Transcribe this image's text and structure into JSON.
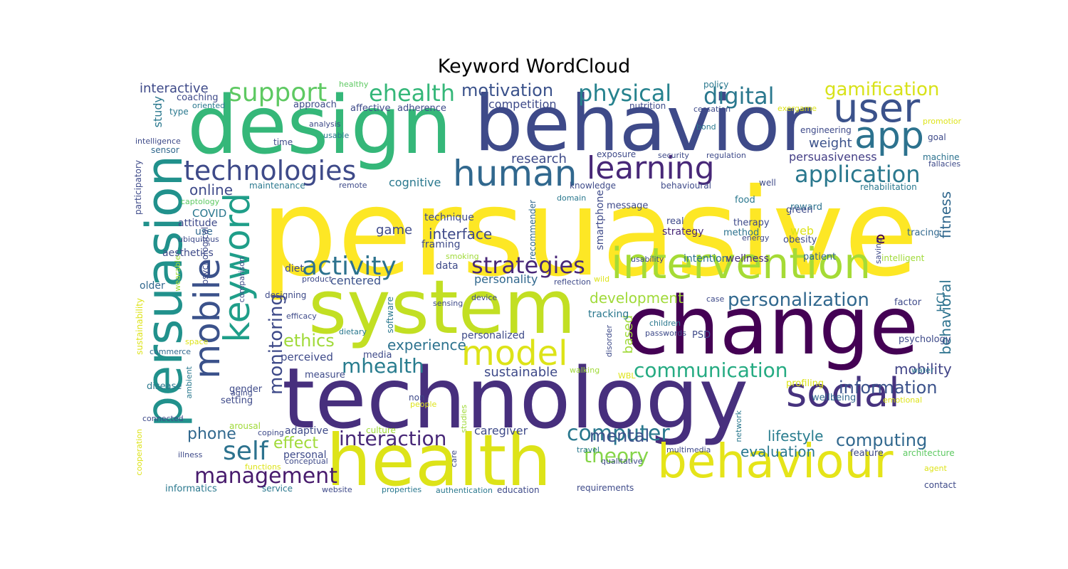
{
  "figure": {
    "title": "Keyword WordCloud",
    "words": [
      {
        "text": "persuasive",
        "color": "#fde725"
      },
      {
        "text": "design",
        "color": "#35b779"
      },
      {
        "text": "behavior",
        "color": "#3e4a89"
      },
      {
        "text": "technology",
        "color": "#472f7d"
      },
      {
        "text": "health",
        "color": "#dde318"
      },
      {
        "text": "system",
        "color": "#c2df23"
      },
      {
        "text": "change",
        "color": "#440154"
      },
      {
        "text": "persuasion",
        "color": "#21918c"
      },
      {
        "text": "behaviour",
        "color": "#e5e419"
      },
      {
        "text": "user",
        "color": "#3b528b"
      },
      {
        "text": "app",
        "color": "#2c728e"
      },
      {
        "text": "intervention",
        "color": "#a5db36"
      },
      {
        "text": "social",
        "color": "#46327e"
      },
      {
        "text": "keyword",
        "color": "#1f9e89"
      },
      {
        "text": "mobile",
        "color": "#3b528b"
      },
      {
        "text": "human",
        "color": "#31688e"
      },
      {
        "text": "learning",
        "color": "#482878"
      },
      {
        "text": "model",
        "color": "#dde318"
      },
      {
        "text": "technologies",
        "color": "#3e4a89"
      },
      {
        "text": "support",
        "color": "#5ec962"
      },
      {
        "text": "ehealth",
        "color": "#35b779"
      },
      {
        "text": "activity",
        "color": "#2c728e"
      },
      {
        "text": "strategies",
        "color": "#482878"
      },
      {
        "text": "application",
        "color": "#2a788e"
      },
      {
        "text": "physical",
        "color": "#26828e"
      },
      {
        "text": "digital",
        "color": "#2a788e"
      },
      {
        "text": "gamification",
        "color": "#d8e219"
      },
      {
        "text": "motivation",
        "color": "#3b528b"
      },
      {
        "text": "communication",
        "color": "#25ab82"
      },
      {
        "text": "computer",
        "color": "#2a788e"
      },
      {
        "text": "self",
        "color": "#2c728e"
      },
      {
        "text": "management",
        "color": "#481b6d"
      },
      {
        "text": "interaction",
        "color": "#482878"
      },
      {
        "text": "mhealth",
        "color": "#287c8e"
      },
      {
        "text": "personalization",
        "color": "#31688e"
      },
      {
        "text": "information",
        "color": "#3b528b"
      },
      {
        "text": "monitoring",
        "color": "#3e4a89"
      },
      {
        "text": "theory",
        "color": "#86d549"
      },
      {
        "text": "mental",
        "color": "#3b528b"
      },
      {
        "text": "computing",
        "color": "#31688e"
      },
      {
        "text": "fitness",
        "color": "#31688e"
      },
      {
        "text": "behavioral",
        "color": "#2c728e"
      },
      {
        "text": "development",
        "color": "#a0da39"
      },
      {
        "text": "ethics",
        "color": "#a0da39"
      },
      {
        "text": "experience",
        "color": "#2c728e"
      },
      {
        "text": "online",
        "color": "#3e4a89"
      },
      {
        "text": "phone",
        "color": "#31688e"
      },
      {
        "text": "effect",
        "color": "#a0da39"
      },
      {
        "text": "evaluation",
        "color": "#2a788e"
      },
      {
        "text": "lifestyle",
        "color": "#287c8e"
      },
      {
        "text": "mobility",
        "color": "#414487"
      },
      {
        "text": "sustainable",
        "color": "#3e4a89"
      },
      {
        "text": "interface",
        "color": "#3e4a89"
      },
      {
        "text": "research",
        "color": "#3e4a89"
      },
      {
        "text": "weight",
        "color": "#3b528b"
      },
      {
        "text": "persuasiveness",
        "color": "#433e85"
      },
      {
        "text": "game",
        "color": "#3e4a89"
      },
      {
        "text": "web",
        "color": "#dde318"
      },
      {
        "text": "e",
        "color": "#440154"
      },
      {
        "text": "interactive",
        "color": "#3e4a89"
      },
      {
        "text": "study",
        "color": "#2a788e"
      },
      {
        "text": "cognitive",
        "color": "#2a788e"
      },
      {
        "text": "competition",
        "color": "#3e4a89"
      },
      {
        "text": "personality",
        "color": "#31688e"
      },
      {
        "text": "centered",
        "color": "#3b528b"
      },
      {
        "text": "based",
        "color": "#a0da39"
      },
      {
        "text": "HCI",
        "color": "#2c728e"
      },
      {
        "text": "caregiver",
        "color": "#3e4a89"
      },
      {
        "text": "COVID",
        "color": "#2a788e"
      },
      {
        "text": "perceived",
        "color": "#3e4a89"
      },
      {
        "text": "personalized",
        "color": "#3e4a89"
      },
      {
        "text": "tracking",
        "color": "#2a788e"
      },
      {
        "text": "strategy",
        "color": "#482878"
      },
      {
        "text": "adaptive",
        "color": "#3e4a89"
      },
      {
        "text": "intention",
        "color": "#2c728e"
      },
      {
        "text": "wellness",
        "color": "#472f7d"
      },
      {
        "text": "smartphone",
        "color": "#3e4a89"
      },
      {
        "text": "framing",
        "color": "#3e4a89"
      },
      {
        "text": "technique",
        "color": "#3e4a89"
      },
      {
        "text": "data",
        "color": "#3e4a89"
      },
      {
        "text": "diet",
        "color": "#3e4a89"
      },
      {
        "text": "use",
        "color": "#31688e"
      },
      {
        "text": "attitude",
        "color": "#3e4a89"
      },
      {
        "text": "aesthetics",
        "color": "#3e4a89"
      },
      {
        "text": "older",
        "color": "#31688e"
      },
      {
        "text": "personal",
        "color": "#3e4a89"
      },
      {
        "text": "psychology",
        "color": "#3e4a89"
      },
      {
        "text": "method",
        "color": "#2c728e"
      },
      {
        "text": "therapy",
        "color": "#3e4a89"
      },
      {
        "text": "reward",
        "color": "#2c728e"
      },
      {
        "text": "green",
        "color": "#3e4a89"
      },
      {
        "text": "obesity",
        "color": "#3e4a89"
      },
      {
        "text": "patient",
        "color": "#31688e"
      },
      {
        "text": "tracing",
        "color": "#31688e"
      },
      {
        "text": "factor",
        "color": "#3e4a89"
      },
      {
        "text": "PSD",
        "color": "#3e4a89"
      },
      {
        "text": "real",
        "color": "#3e4a89"
      },
      {
        "text": "message",
        "color": "#3e4a89"
      },
      {
        "text": "food",
        "color": "#2a788e"
      },
      {
        "text": "setting",
        "color": "#3e4a89"
      },
      {
        "text": "gender",
        "color": "#3e4a89"
      },
      {
        "text": "disease",
        "color": "#2a788e"
      },
      {
        "text": "measure",
        "color": "#3e4a89"
      },
      {
        "text": "media",
        "color": "#3e4a89"
      },
      {
        "text": "feature",
        "color": "#3e4a89"
      },
      {
        "text": "wellbeing",
        "color": "#31688e"
      },
      {
        "text": "profiling",
        "color": "#dde318"
      },
      {
        "text": "coaching",
        "color": "#3e4a89"
      },
      {
        "text": "approach",
        "color": "#3e4a89"
      },
      {
        "text": "affective",
        "color": "#3e4a89"
      },
      {
        "text": "adherence",
        "color": "#3e4a89"
      },
      {
        "text": "nutrition",
        "color": "#3e4a89"
      },
      {
        "text": "policy",
        "color": "#2a788e"
      },
      {
        "text": "cessation",
        "color": "#3e4a89"
      },
      {
        "text": "engineering",
        "color": "#3e4a89"
      },
      {
        "text": "goal",
        "color": "#3e4a89"
      },
      {
        "text": "machine",
        "color": "#2c728e"
      },
      {
        "text": "fallacies",
        "color": "#3e4a89"
      },
      {
        "text": "rehabilitation",
        "color": "#2a788e"
      },
      {
        "text": "exposure",
        "color": "#3e4a89"
      },
      {
        "text": "security",
        "color": "#3e4a89"
      },
      {
        "text": "regulation",
        "color": "#3e4a89"
      },
      {
        "text": "knowledge",
        "color": "#3e4a89"
      },
      {
        "text": "behavioural",
        "color": "#3e4a89"
      },
      {
        "text": "well",
        "color": "#3e4a89"
      },
      {
        "text": "energy",
        "color": "#3e4a89"
      },
      {
        "text": "domain",
        "color": "#2a788e"
      },
      {
        "text": "recommender",
        "color": "#31688e"
      },
      {
        "text": "maintenance",
        "color": "#2a788e"
      },
      {
        "text": "remote",
        "color": "#3e4a89"
      },
      {
        "text": "captology",
        "color": "#5ec962"
      },
      {
        "text": "participatory",
        "color": "#3e4a89"
      },
      {
        "text": "sensor",
        "color": "#31688e"
      },
      {
        "text": "intelligence",
        "color": "#3e4a89"
      },
      {
        "text": "time",
        "color": "#3e4a89"
      },
      {
        "text": "analysis",
        "color": "#3e4a89"
      },
      {
        "text": "usable",
        "color": "#2a788e"
      },
      {
        "text": "type",
        "color": "#2a788e"
      },
      {
        "text": "oriented",
        "color": "#2a788e"
      },
      {
        "text": "healthy",
        "color": "#5ec962"
      },
      {
        "text": "bond",
        "color": "#2a788e"
      },
      {
        "text": "exergame",
        "color": "#dde318"
      },
      {
        "text": "promotion",
        "color": "#dde318"
      },
      {
        "text": "ubiquitous",
        "color": "#3e4a89"
      },
      {
        "text": "psychological",
        "color": "#3e4a89"
      },
      {
        "text": "wearable",
        "color": "#a0da39"
      },
      {
        "text": "comparison",
        "color": "#3e4a89"
      },
      {
        "text": "designing",
        "color": "#3e4a89"
      },
      {
        "text": "product",
        "color": "#3e4a89"
      },
      {
        "text": "efficacy",
        "color": "#3e4a89"
      },
      {
        "text": "sustainability",
        "color": "#dde318"
      },
      {
        "text": "commerce",
        "color": "#31688e"
      },
      {
        "text": "space",
        "color": "#dde318"
      },
      {
        "text": "dietary",
        "color": "#2a788e"
      },
      {
        "text": "software",
        "color": "#2a788e"
      },
      {
        "text": "sensing",
        "color": "#3e4a89"
      },
      {
        "text": "device",
        "color": "#3e4a89"
      },
      {
        "text": "reflection",
        "color": "#3e4a89"
      },
      {
        "text": "wild",
        "color": "#dde318"
      },
      {
        "text": "smoking",
        "color": "#a0da39"
      },
      {
        "text": "usability",
        "color": "#3e4a89"
      },
      {
        "text": "intelligent",
        "color": "#a0da39"
      },
      {
        "text": "saving",
        "color": "#3e4a89"
      },
      {
        "text": "case",
        "color": "#3e4a89"
      },
      {
        "text": "children",
        "color": "#2a788e"
      },
      {
        "text": "passwords",
        "color": "#3e4a89"
      },
      {
        "text": "disorder",
        "color": "#3e4a89"
      },
      {
        "text": "walking",
        "color": "#a0da39"
      },
      {
        "text": "WBL",
        "color": "#dde318"
      },
      {
        "text": "water",
        "color": "#2a788e"
      },
      {
        "text": "emotional",
        "color": "#dde318"
      },
      {
        "text": "non",
        "color": "#3e4a89"
      },
      {
        "text": "people",
        "color": "#dde318"
      },
      {
        "text": "studies",
        "color": "#a0da39"
      },
      {
        "text": "ambient",
        "color": "#2a788e"
      },
      {
        "text": "aging",
        "color": "#3e4a89"
      },
      {
        "text": "connected",
        "color": "#3e4a89"
      },
      {
        "text": "arousal",
        "color": "#a0da39"
      },
      {
        "text": "coping",
        "color": "#3e4a89"
      },
      {
        "text": "culture",
        "color": "#a0da39"
      },
      {
        "text": "network",
        "color": "#2a788e"
      },
      {
        "text": "multimedia",
        "color": "#3e4a89"
      },
      {
        "text": "architecture",
        "color": "#5ec962"
      },
      {
        "text": "agent",
        "color": "#dde318"
      },
      {
        "text": "cooperation",
        "color": "#dde318"
      },
      {
        "text": "illness",
        "color": "#3e4a89"
      },
      {
        "text": "functions",
        "color": "#dde318"
      },
      {
        "text": "conceptual",
        "color": "#3e4a89"
      },
      {
        "text": "care",
        "color": "#3e4a89"
      },
      {
        "text": "travel",
        "color": "#2a788e"
      },
      {
        "text": "qualitative",
        "color": "#3e4a89"
      },
      {
        "text": "informatics",
        "color": "#2a788e"
      },
      {
        "text": "service",
        "color": "#2a788e"
      },
      {
        "text": "website",
        "color": "#3e4a89"
      },
      {
        "text": "properties",
        "color": "#2a788e"
      },
      {
        "text": "authentication",
        "color": "#2a788e"
      },
      {
        "text": "education",
        "color": "#3e4a89"
      },
      {
        "text": "requirements",
        "color": "#3e4a89"
      },
      {
        "text": "contact",
        "color": "#3e4a89"
      }
    ]
  }
}
